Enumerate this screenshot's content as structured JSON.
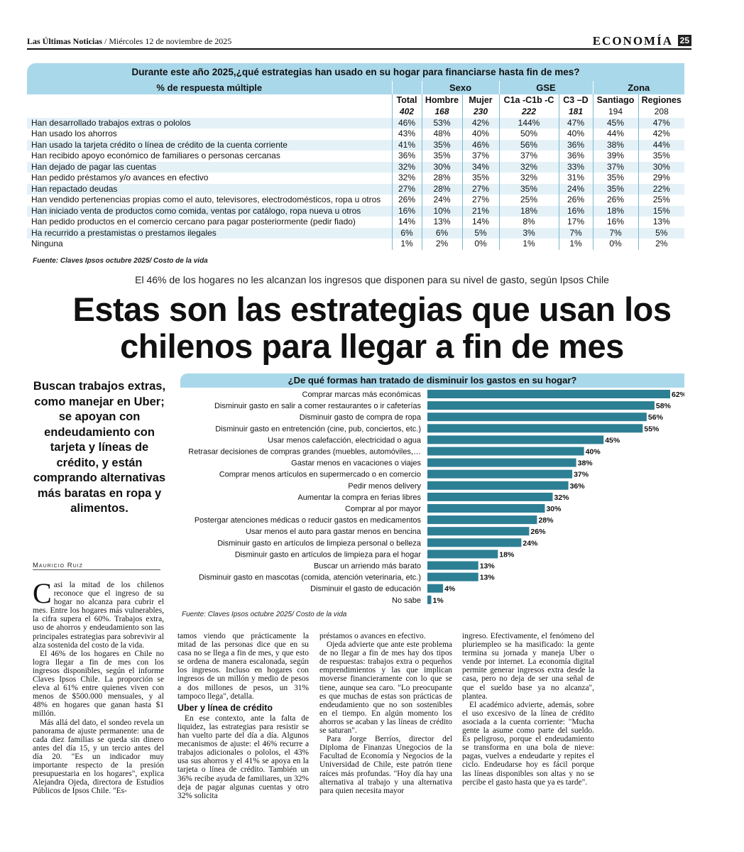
{
  "header": {
    "publication": "Las Últimas Noticias",
    "date": "/ Miércoles 12 de noviembre de 2025",
    "section": "ECONOMÍA",
    "page_number": "25"
  },
  "survey_table": {
    "title": "Durante este año 2025,¿qué estrategias han usado en su hogar para financiarse hasta fin de mes?",
    "row_header": "% de respuesta múltiple",
    "groups": [
      "Sexo",
      "GSE",
      "Zona"
    ],
    "columns": [
      "Total",
      "Hombre",
      "Mujer",
      "C1a -C1b -C",
      "C3 –D",
      "Santiago",
      "Regiones"
    ],
    "n_values": [
      "402",
      "168",
      "230",
      "222",
      "181",
      "194",
      "208"
    ],
    "rows": [
      {
        "label": "Han desarrollado trabajos extras o pololos",
        "values": [
          "46%",
          "53%",
          "42%",
          "144%",
          "47%",
          "45%",
          "47%"
        ]
      },
      {
        "label": "Han usado los ahorros",
        "values": [
          "43%",
          "48%",
          "40%",
          "50%",
          "40%",
          "44%",
          "42%"
        ]
      },
      {
        "label": "Han usado la tarjeta crédito o línea de crédito de la cuenta corriente",
        "values": [
          "41%",
          "35%",
          "46%",
          "56%",
          "36%",
          "38%",
          "44%"
        ]
      },
      {
        "label": "Han recibido apoyo económico de familiares o personas cercanas",
        "values": [
          "36%",
          "35%",
          "37%",
          "37%",
          "36%",
          "39%",
          "35%"
        ]
      },
      {
        "label": "Han dejado de pagar las cuentas",
        "values": [
          "32%",
          "30%",
          "34%",
          "32%",
          "33%",
          "37%",
          "30%"
        ]
      },
      {
        "label": "Han pedido préstamos y/o avances en efectivo",
        "values": [
          "32%",
          "28%",
          "35%",
          "32%",
          "31%",
          "35%",
          "29%"
        ]
      },
      {
        "label": "Han repactado deudas",
        "values": [
          "27%",
          "28%",
          "27%",
          "35%",
          "24%",
          "35%",
          "22%"
        ]
      },
      {
        "label": "Han vendido pertenencias propias como el auto, televisores, electrodomésticos, ropa u otros",
        "values": [
          "26%",
          "24%",
          "27%",
          "25%",
          "26%",
          "26%",
          "25%"
        ]
      },
      {
        "label": "Han iniciado venta de productos como comida, ventas por catálogo, ropa nueva u otros",
        "values": [
          "16%",
          "10%",
          "21%",
          "18%",
          "16%",
          "18%",
          "15%"
        ]
      },
      {
        "label": "Han pedido productos en el comercio cercano para pagar posteriormente (pedir fiado)",
        "values": [
          "14%",
          "13%",
          "14%",
          "8%",
          "17%",
          "16%",
          "13%"
        ]
      },
      {
        "label": "Ha recurrido a prestamistas o prestamos ilegales",
        "values": [
          "6%",
          "6%",
          "5%",
          "3%",
          "7%",
          "7%",
          "5%"
        ]
      },
      {
        "label": "Ninguna",
        "values": [
          "1%",
          "2%",
          "0%",
          "1%",
          "1%",
          "0%",
          "2%"
        ]
      }
    ],
    "source": "Fuente: Claves Ipsos octubre 2025/ Costo de la vida"
  },
  "article": {
    "kicker": "El 46% de los hogares no les alcanzan los ingresos que disponen para su nivel de gasto, según Ipsos Chile",
    "headline_line1": "Estas son las estrategias que usan los",
    "headline_line2": "chilenos para llegar a fin de mes",
    "deck": "Buscan trabajos extras, como manejar en Uber; se apoyan con endeudamiento con tarjeta y líneas de crédito, y están comprando alternativas más baratas en ropa y alimentos.",
    "byline": "Mauricio Ruiz",
    "dropcap": "C",
    "col1": [
      "asi la mitad de los chilenos reconoce que el ingreso de su hogar no alcanza para cubrir el mes. Entre los hogares más vulnerables, la cifra supera el 60%. Trabajos extra, uso de ahorros y endeudamiento son las principales estrategias para sobrevivir al alza sostenida del costo de la vida.",
      "El 46% de los hogares en Chile no logra llegar a fin de mes con los ingresos disponibles, según el informe Claves Ipsos Chile. La proporción se eleva al 61% entre quienes viven con menos de $500.000 mensuales, y al 48% en hogares que ganan hasta $1 millón.",
      "Más allá del dato, el sondeo revela un panorama de ajuste permanente: una de cada diez familias se queda sin dinero antes del día 15, y un tercio antes del día 20. \"Es un indicador muy importante respecto de la presión presupuestaria en los hogares\", explica Alejandra Ojeda, directora de Estudios Públicos de Ipsos Chile. \"Es-"
    ],
    "col2a": "tamos viendo que prácticamente la mitad de las personas dice que en su casa no se llega a fin de mes, y que esto se ordena de manera escalonada, según los ingresos. Incluso en hogares con ingresos de un millón y medio de pesos a dos millones de pesos, un 31% tampoco llega\", detalla.",
    "subhead": "Uber y línea de crédito",
    "col2b": "En ese contexto, ante la falta de liquidez, las estrategias para resistir se han vuelto parte del día a día. Algunos mecanismos de ajuste: el 46% recurre a trabajos adicionales o pololos, el 43% usa sus ahorros y el 41% se apoya en la tarjeta o línea de crédito. También un 36% recibe ayuda de familiares, un 32% deja de pagar algunas cuentas y otro 32% solicita",
    "col3": [
      "préstamos o avances en efectivo.",
      "Ojeda advierte que ante este problema de no llegar a fin de mes hay dos tipos de respuestas: trabajos extra o pequeños emprendimientos y las que implican moverse financieramente con lo que se tiene, aunque sea caro. \"Lo preocupante es que muchas de estas son prácticas de endeudamiento que no son sostenibles en el tiempo. En algún momento los ahorros se acaban y las líneas de crédito se saturan\".",
      "Para Jorge Berríos, director del Diploma de Finanzas Unegocios de la Facultad de Economía y Negocios de la Universidad de Chile, este patrón tiene raíces más profundas. \"Hoy día hay una alternativa al trabajo y una alternativa para quien necesita mayor"
    ],
    "col4": [
      "ingreso. Efectivamente, el fenómeno del pluriempleo se ha masificado: la gente termina su jornada y maneja Uber o vende por internet. La economía digital permite generar ingresos extra desde la casa, pero no deja de ser una señal de que el sueldo base ya no alcanza\", plantea.",
      "El académico advierte, además, sobre el uso excesivo de la línea de crédito asociada a la cuenta corriente: \"Mucha gente la asume como parte del sueldo. Es peligroso, porque el endeudamiento se transforma en una bola de nieve: pagas, vuelves a endeudarte y repites el ciclo. Endeudarse hoy es fácil porque las líneas disponibles son altas y no se percibe el gasto hasta que ya es tarde\"."
    ]
  },
  "chart_data": {
    "type": "bar",
    "orientation": "horizontal",
    "title": "¿De qué formas han tratado de disminuir los gastos en su hogar?",
    "categories": [
      "Comprar marcas más económicas",
      "Disminuir gasto en salir a comer restaurantes o ir cafeterías",
      "Disminuir gasto de compra de ropa",
      "Disminuir gasto en entretención (cine, pub, conciertos, etc.)",
      "Usar menos calefacción, electricidad o agua",
      "Retrasar decisiones de compras grandes (muebles, automóviles,…",
      "Gastar menos en vacaciones o viajes",
      "Comprar menos artículos en supermercado o en comercio",
      "Pedir menos delivery",
      "Aumentar la compra en ferias libres",
      "Comprar al por mayor",
      "Postergar atenciones médicas o reducir gastos en medicamentos",
      "Usar menos el auto para gastar menos en bencina",
      "Disminuir gasto en artículos de limpieza personal o belleza",
      "Disminuir gasto en artículos de limpieza para el hogar",
      "Buscar un arriendo más barato",
      "Disminuir gasto en mascotas (comida, atención veterinaria, etc.)",
      "Disminuir el gasto de educación",
      "No sabe"
    ],
    "values": [
      62,
      58,
      56,
      55,
      45,
      40,
      38,
      37,
      36,
      32,
      30,
      28,
      26,
      24,
      18,
      13,
      13,
      4,
      1
    ],
    "value_labels": [
      "62%",
      "58%",
      "56%",
      "55%",
      "45%",
      "40%",
      "38%",
      "37%",
      "36%",
      "32%",
      "30%",
      "28%",
      "26%",
      "24%",
      "18%",
      "13%",
      "13%",
      "4%",
      "1%"
    ],
    "xlim": [
      0,
      62
    ],
    "bar_color": "#2d7f94",
    "source": "Fuente: Claves Ipsos octubre 2025/ Costo de la vida"
  }
}
